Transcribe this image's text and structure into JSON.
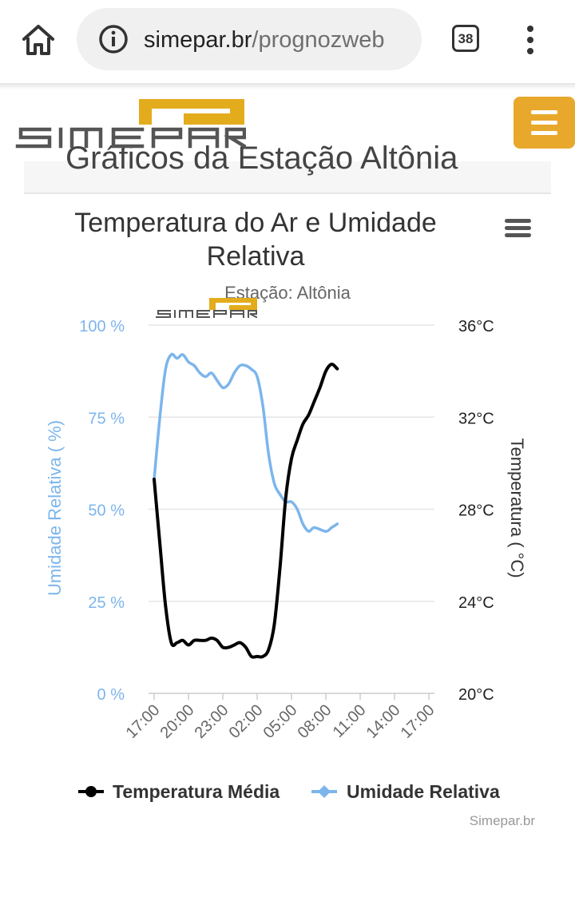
{
  "browser": {
    "url_host": "simepar.br",
    "url_path": "/prognozweb",
    "tab_count": "38",
    "icons": {
      "home": "home-icon",
      "info": "info-icon",
      "tabs": "tab-switcher-icon",
      "menu": "more-vertical-icon"
    }
  },
  "site": {
    "logo_text": "SIMEPAR",
    "menu_icon": "hamburger-menu-icon",
    "section_heading": "Gráficos da Estação Altônia",
    "brand_color": "#e8a82c"
  },
  "chart_data": {
    "type": "line",
    "title": "Temperatura do Ar e Umidade Relativa",
    "title_lines": [
      "Temperatura do Ar e Umidade",
      "Relativa"
    ],
    "subtitle": "Estação: Altônia",
    "watermark": "SIMEPAR",
    "credit": "Simepar.br",
    "menu_icon": "chart-menu-icon",
    "x_tick_labels": [
      "17:00",
      "20:00",
      "23:00",
      "02:00",
      "05:00",
      "08:00",
      "11:00",
      "14:00",
      "17:00"
    ],
    "x_hours": [
      0,
      24
    ],
    "y_left": {
      "label": "Umidade Relativa ( %)",
      "range": [
        0,
        100
      ],
      "tick_values": [
        0,
        25,
        50,
        75,
        100
      ],
      "tick_labels": [
        "0 %",
        "25 %",
        "50 %",
        "75 %",
        "100 %"
      ],
      "color": "#7cb5ec"
    },
    "y_right": {
      "label": "Temperatura ( °C)",
      "range": [
        20,
        36
      ],
      "tick_values": [
        20,
        24,
        28,
        32,
        36
      ],
      "tick_labels": [
        "20°C",
        "24°C",
        "28°C",
        "32°C",
        "36°C"
      ],
      "color": "#222222"
    },
    "grid": true,
    "legend_position": "bottom-center",
    "series": [
      {
        "name": "Temperatura Média",
        "axis": "right",
        "color": "#000000",
        "marker": "circle",
        "points": [
          [
            0,
            29.3
          ],
          [
            0.5,
            26.5
          ],
          [
            1,
            23.8
          ],
          [
            1.5,
            22.2
          ],
          [
            2,
            22.2
          ],
          [
            2.5,
            22.3
          ],
          [
            3,
            22.1
          ],
          [
            3.5,
            22.3
          ],
          [
            4,
            22.3
          ],
          [
            4.5,
            22.3
          ],
          [
            5,
            22.4
          ],
          [
            5.5,
            22.3
          ],
          [
            6,
            22.0
          ],
          [
            6.5,
            22.0
          ],
          [
            7,
            22.1
          ],
          [
            7.5,
            22.2
          ],
          [
            8,
            22.0
          ],
          [
            8.5,
            21.6
          ],
          [
            9,
            21.6
          ],
          [
            9.5,
            21.6
          ],
          [
            10,
            21.9
          ],
          [
            10.5,
            23.0
          ],
          [
            11,
            25.5
          ],
          [
            11.5,
            28.5
          ],
          [
            12,
            30.2
          ],
          [
            12.5,
            31.0
          ],
          [
            13,
            31.7
          ],
          [
            13.5,
            32.1
          ],
          [
            14,
            32.7
          ],
          [
            14.5,
            33.3
          ],
          [
            15,
            34.0
          ],
          [
            15.5,
            34.3
          ],
          [
            16,
            34.1
          ]
        ]
      },
      {
        "name": "Umidade Relativa",
        "axis": "left",
        "color": "#7cb5ec",
        "marker": "diamond",
        "points": [
          [
            0,
            58
          ],
          [
            0.5,
            75
          ],
          [
            1,
            88
          ],
          [
            1.5,
            92
          ],
          [
            2,
            91
          ],
          [
            2.5,
            92
          ],
          [
            3,
            90
          ],
          [
            3.5,
            89
          ],
          [
            4,
            87
          ],
          [
            4.5,
            86
          ],
          [
            5,
            87
          ],
          [
            5.5,
            85
          ],
          [
            6,
            83
          ],
          [
            6.5,
            84
          ],
          [
            7,
            87
          ],
          [
            7.5,
            89
          ],
          [
            8,
            89
          ],
          [
            8.5,
            88
          ],
          [
            9,
            86
          ],
          [
            9.5,
            78
          ],
          [
            10,
            65
          ],
          [
            10.5,
            57
          ],
          [
            11,
            54
          ],
          [
            11.5,
            52
          ],
          [
            12,
            52
          ],
          [
            12.5,
            50
          ],
          [
            13,
            46
          ],
          [
            13.5,
            44
          ],
          [
            14,
            45
          ],
          [
            15,
            44
          ],
          [
            15.5,
            45
          ],
          [
            16,
            46
          ]
        ]
      }
    ]
  }
}
